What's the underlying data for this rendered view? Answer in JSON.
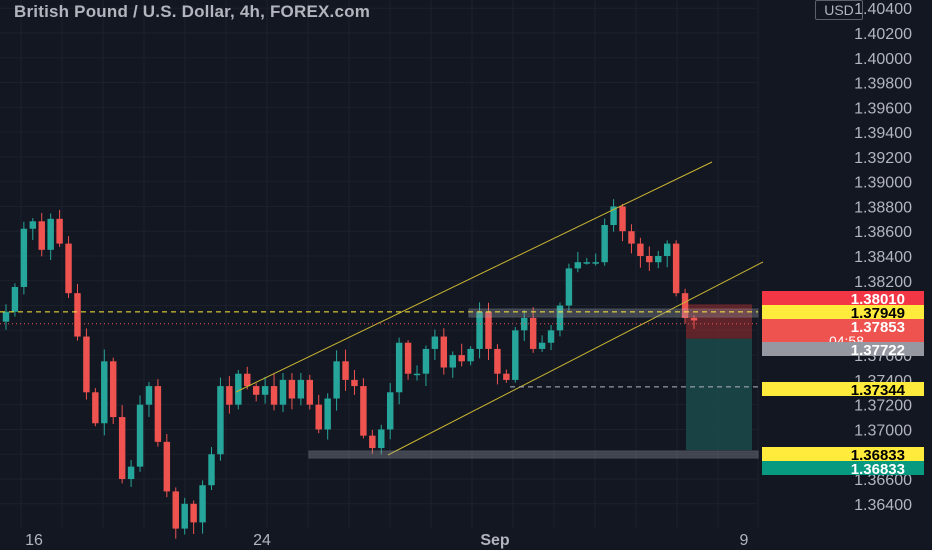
{
  "title": "British Pound / U.S. Dollar, 4h, FOREX.com",
  "currency_label": "USD",
  "colors": {
    "background": "#131722",
    "up": "#26a69a",
    "down": "#ef5350",
    "channel": "#c8b432",
    "level": "#ffeb3b"
  },
  "chart_data": {
    "type": "candlestick",
    "y_axis": {
      "min": 1.3635,
      "max": 1.4045,
      "ticks": [
        "1.40400",
        "1.40200",
        "1.40000",
        "1.39800",
        "1.39600",
        "1.39400",
        "1.39200",
        "1.39000",
        "1.38800",
        "1.38600",
        "1.38400",
        "1.38200",
        "1.38000",
        "1.37800",
        "1.37600",
        "1.37400",
        "1.37200",
        "1.37000",
        "1.36800",
        "1.36600",
        "1.36400"
      ]
    },
    "x_axis": {
      "ticks": [
        "16",
        "24",
        "Sep",
        "9"
      ]
    },
    "close_path": [
      1.3795,
      1.3815,
      1.3862,
      1.3868,
      1.3845,
      1.387,
      1.385,
      1.381,
      1.3775,
      1.373,
      1.3705,
      1.3755,
      1.371,
      1.366,
      1.367,
      1.372,
      1.3735,
      1.369,
      1.365,
      1.362,
      1.364,
      1.3625,
      1.3655,
      1.368,
      1.3735,
      1.372,
      1.3745,
      1.3735,
      1.3728,
      1.3735,
      1.372,
      1.374,
      1.3725,
      1.374,
      1.372,
      1.37,
      1.3725,
      1.3755,
      1.374,
      1.3735,
      1.3695,
      1.3685,
      1.37,
      1.373,
      1.377,
      1.3745,
      1.3745,
      1.3765,
      1.3775,
      1.375,
      1.376,
      1.3755,
      1.3765,
      1.3795,
      1.3765,
      1.3745,
      1.374,
      1.378,
      1.379,
      1.3765,
      1.377,
      1.378,
      1.38,
      1.383,
      1.3835,
      1.3835,
      1.3835,
      1.3865,
      1.388,
      1.386,
      1.385,
      1.384,
      1.3835,
      1.384,
      1.385,
      1.381,
      1.379,
      1.3788
    ],
    "levels": [
      {
        "price": 1.3801,
        "label": "1.38010"
      },
      {
        "price": 1.37949,
        "label": "1.37949"
      },
      {
        "price": 1.37853,
        "label": "1.37853",
        "sublabel": "04:58"
      },
      {
        "price": 1.37722,
        "label": "1.37722"
      },
      {
        "price": 1.37344,
        "label": "1.37344"
      },
      {
        "price": 1.36833,
        "label": "1.36833"
      },
      {
        "price": 1.36833,
        "label": "1.36833"
      }
    ],
    "grid": true,
    "series": [
      {
        "name": "GBP/USD"
      }
    ]
  }
}
